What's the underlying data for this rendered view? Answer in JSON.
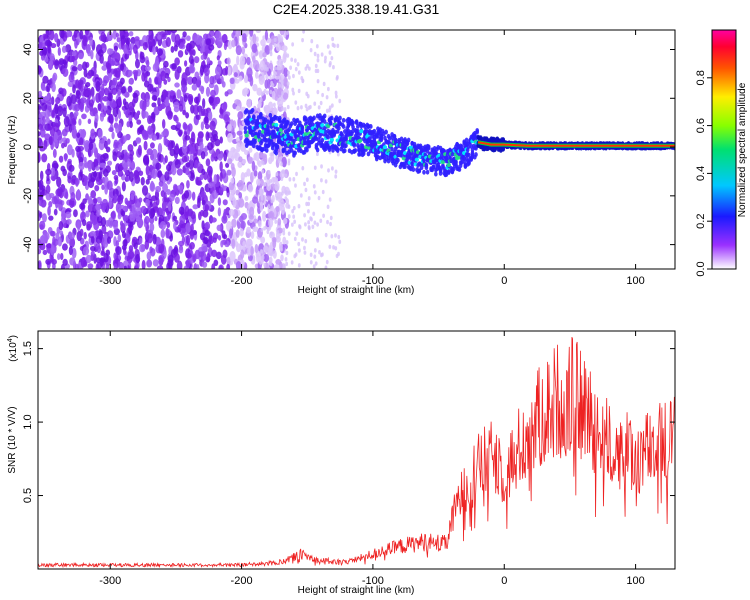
{
  "title": "C2E4.2025.338.19.41.G31",
  "chart_data": [
    {
      "type": "heatmap",
      "xlabel": "Height of straight line (km)",
      "ylabel": "Frequency (Hz)",
      "xlim": [
        -355,
        130
      ],
      "ylim": [
        -50,
        48
      ],
      "xticks": [
        -300,
        -200,
        -100,
        0,
        100
      ],
      "yticks": [
        -40,
        -20,
        0,
        20,
        40
      ],
      "colorbar": {
        "label": "Normalized spectral amplitude",
        "range": [
          0.0,
          1.0
        ],
        "ticks": [
          0.0,
          0.2,
          0.4,
          0.6,
          0.8
        ],
        "tick_labels": [
          "0.0",
          "0.2",
          "0.4",
          "0.6",
          "0.8"
        ]
      },
      "ridge": {
        "description": "dominant frequency band vs height",
        "x": [
          -195,
          -175,
          -160,
          -140,
          -120,
          -100,
          -80,
          -60,
          -45,
          -30,
          -20,
          -10,
          0,
          20,
          60,
          100,
          130
        ],
        "y": [
          8,
          5,
          4,
          6,
          5,
          2,
          -2,
          -5,
          -6,
          -3,
          2,
          1,
          1,
          0.5,
          0.5,
          0.5,
          0.5
        ]
      },
      "noise_region": {
        "x_range": [
          -355,
          -185
        ],
        "y_range": [
          -50,
          48
        ],
        "amplitude": "low"
      }
    },
    {
      "type": "line",
      "xlabel": "Height of straight line (km)",
      "ylabel": "SNR (10 * V/V)",
      "y_scale_note": "(x10^4)",
      "xlim": [
        -355,
        130
      ],
      "ylim": [
        0,
        1.62
      ],
      "xticks": [
        -300,
        -200,
        -100,
        0,
        100
      ],
      "yticks": [
        0.5,
        1.0,
        1.5
      ],
      "ytick_labels": [
        "0.5",
        "1.0",
        "1.5"
      ],
      "series": [
        {
          "name": "SNR",
          "color": "#ee2222",
          "envelope_x": [
            -355,
            -200,
            -170,
            -155,
            -140,
            -120,
            -100,
            -80,
            -60,
            -45,
            -35,
            -25,
            -15,
            -5,
            0,
            10,
            20,
            30,
            40,
            50,
            60,
            70,
            80,
            90,
            100,
            110,
            120,
            130
          ],
          "envelope_y": [
            0.03,
            0.03,
            0.05,
            0.12,
            0.06,
            0.05,
            0.12,
            0.18,
            0.22,
            0.2,
            0.55,
            0.75,
            0.85,
            0.9,
            0.75,
            0.95,
            1.1,
            1.25,
            1.35,
            1.4,
            1.3,
            1.15,
            1.0,
            0.95,
            0.9,
            0.95,
            1.0,
            1.05
          ]
        }
      ]
    }
  ],
  "colors": {
    "axis": "#000000",
    "line": "#ee2222",
    "ridge_edge": "#2222ff",
    "ridge_core": "#00ffff",
    "ridge_hot": "#ff2200",
    "noise": "#7a1ee0"
  }
}
